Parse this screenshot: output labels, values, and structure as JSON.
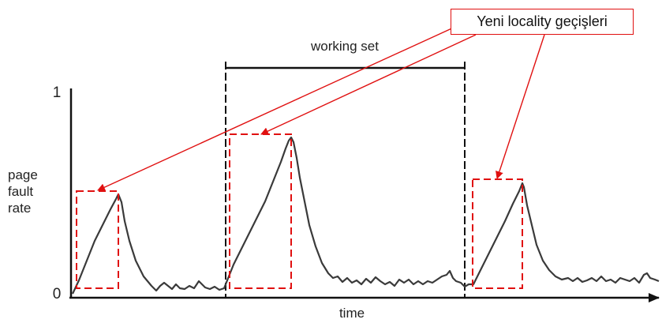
{
  "diagram": {
    "y_axis_label_lines": [
      "page",
      "fault",
      "rate"
    ],
    "y_tick_top": "1",
    "y_tick_bottom": "0",
    "x_axis_label": "time",
    "bracket_label": "working set",
    "callout_text": "Yeni locality geçişleri",
    "colors": {
      "curve": "#3a3a3a",
      "highlight": "#e01010",
      "axis": "#111111"
    }
  }
}
